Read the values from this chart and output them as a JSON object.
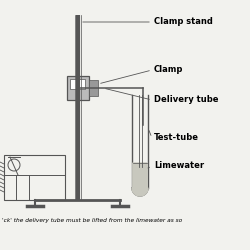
{
  "bg_color": "#f2f2ee",
  "line_color": "#555555",
  "gray_fill": "#999999",
  "light_gray": "#bbbbbb",
  "limewater_color": "#c8c8be",
  "labels": {
    "clamp_stand": "Clamp stand",
    "clamp": "Clamp",
    "delivery_tube": "Delivery tube",
    "test_tube": "Test-tube",
    "limewater": "Limewater"
  },
  "bottom_text": "'ck' the delivery tube must be lifted from the limewater as so",
  "label_font_size": 6.0
}
